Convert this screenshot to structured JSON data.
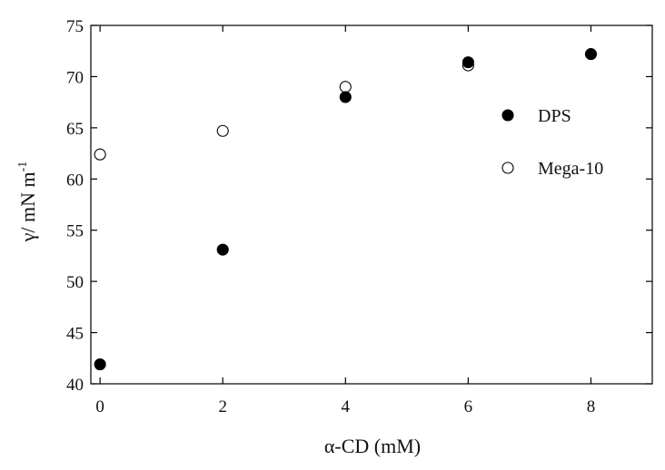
{
  "chart_data": {
    "type": "scatter",
    "title": "",
    "xlabel": "α-CD (mM)",
    "ylabel": "γ/ mN m",
    "ylabel_superscript": "-1",
    "xlim": [
      -0.15,
      9.0
    ],
    "ylim": [
      40,
      75
    ],
    "xticks": [
      0,
      2,
      4,
      6,
      8
    ],
    "yticks": [
      40,
      45,
      50,
      55,
      60,
      65,
      70,
      75
    ],
    "grid": false,
    "legend_position": "right",
    "series": [
      {
        "name": "DPS",
        "marker": "filled-circle",
        "color": "#000000",
        "x": [
          0,
          2,
          4,
          6,
          8
        ],
        "y": [
          41.9,
          53.1,
          68.0,
          71.4,
          72.2
        ]
      },
      {
        "name": "Mega-10",
        "marker": "open-circle",
        "color": "#000000",
        "x": [
          0,
          2,
          4,
          6
        ],
        "y": [
          62.4,
          64.7,
          69.0,
          71.1
        ]
      }
    ]
  }
}
